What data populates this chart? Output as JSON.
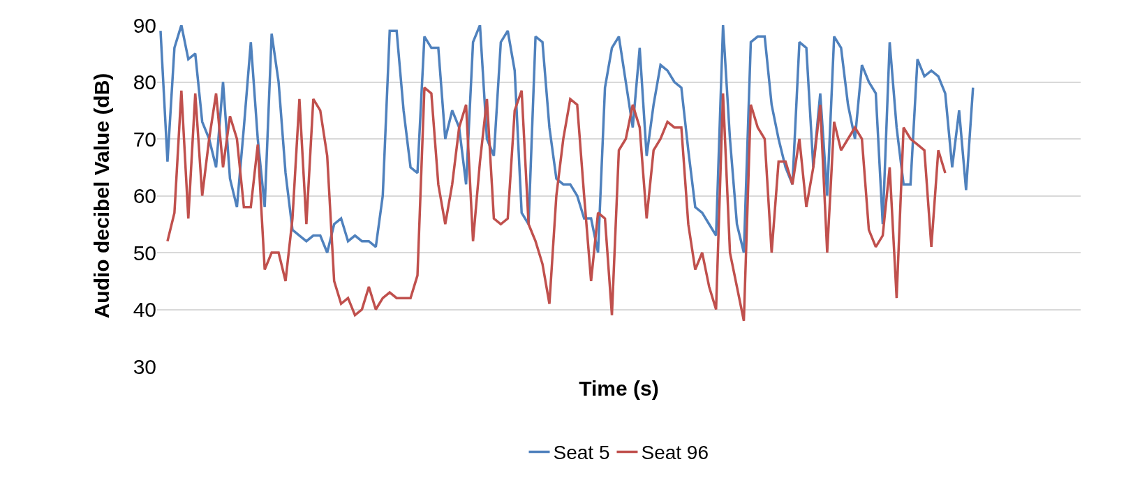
{
  "chart_data": {
    "type": "line",
    "xlabel": "Time (s)",
    "ylabel": "Audio decibel Value (dB)",
    "categories": [
      null,
      null,
      null,
      null,
      null,
      null,
      null,
      null,
      null,
      null,
      null,
      null,
      null,
      null,
      null,
      null,
      null,
      null,
      null,
      null,
      null,
      null,
      null,
      null,
      null,
      null,
      null,
      null,
      null,
      null,
      null,
      null,
      null,
      null,
      null,
      null,
      null,
      null,
      null,
      null,
      null,
      null,
      null,
      null,
      null,
      null,
      null,
      null,
      null,
      null,
      null,
      null,
      null,
      null,
      null,
      null,
      null,
      null,
      null,
      null,
      null,
      null,
      null,
      null,
      null,
      null,
      null,
      null,
      null,
      null,
      null,
      null,
      null,
      null,
      null,
      null,
      null,
      null,
      null,
      null,
      null,
      null,
      null,
      null,
      null,
      null,
      null,
      null,
      null,
      null,
      null,
      null,
      null,
      null,
      null,
      null,
      null,
      null,
      null,
      null,
      null,
      null,
      null,
      null,
      null,
      null,
      null,
      null,
      null,
      null,
      null,
      null,
      null,
      null,
      null,
      null,
      null,
      null,
      null,
      null,
      null,
      null,
      null,
      null,
      null,
      null,
      null,
      null,
      null,
      null,
      null,
      null,
      null
    ],
    "series": [
      {
        "name": "Seat 5",
        "color": "#4f81bd",
        "values": [
          89,
          66,
          86,
          90,
          84,
          85,
          73,
          70,
          65,
          80,
          63,
          58,
          72,
          87,
          70,
          58,
          88.5,
          80,
          64,
          54,
          53,
          52,
          53,
          53,
          50,
          55,
          56,
          52,
          53,
          52,
          52,
          51,
          60,
          89,
          89,
          75,
          65,
          64,
          88,
          86,
          86,
          70,
          75,
          72,
          62,
          87,
          90,
          70,
          67,
          87,
          89,
          82,
          57,
          55,
          88,
          87,
          72,
          63,
          62,
          62,
          60,
          56,
          56,
          50,
          79,
          86,
          88,
          80,
          72,
          86,
          67,
          76,
          83,
          82,
          80,
          79,
          68,
          58,
          57,
          55,
          53,
          90,
          70,
          55,
          50,
          87,
          88,
          88,
          76,
          70,
          65,
          62,
          87,
          86,
          65,
          78,
          60,
          88,
          86,
          76,
          70,
          83,
          80,
          78,
          55,
          87,
          72,
          62,
          62,
          84,
          81,
          82,
          81,
          78,
          65,
          75,
          61,
          79,
          null,
          null,
          null,
          null,
          null,
          null,
          null,
          null,
          null,
          null,
          null,
          null,
          null,
          null,
          null
        ]
      },
      {
        "name": "Seat 96",
        "color": "#c0504d",
        "values": [
          null,
          52,
          57,
          78.5,
          56,
          78,
          60,
          70,
          78,
          65,
          74,
          70,
          58,
          58,
          69,
          47,
          50,
          50,
          45,
          56,
          77,
          55,
          77,
          75,
          67,
          45,
          41,
          42,
          39,
          40,
          44,
          40,
          42,
          43,
          42,
          42,
          42,
          46,
          79,
          78,
          62,
          55,
          62,
          72,
          76,
          52,
          66,
          77,
          56,
          55,
          56,
          75,
          78.5,
          55,
          52,
          48,
          41,
          60,
          70,
          77,
          76,
          60,
          45,
          57,
          56,
          39,
          68,
          70,
          76,
          72,
          56,
          68,
          70,
          73,
          72,
          72,
          55,
          47,
          50,
          44,
          40,
          78,
          50,
          44,
          38,
          76,
          72,
          70,
          50,
          66,
          66,
          62,
          70,
          58,
          65,
          76,
          50,
          73,
          68,
          70,
          72,
          70,
          54,
          51,
          53,
          65,
          42,
          72,
          70,
          69,
          68,
          51,
          68,
          64,
          null,
          null,
          null,
          null,
          null,
          null,
          null,
          null,
          null,
          null,
          null,
          null,
          null,
          null,
          null,
          null,
          null,
          null,
          null
        ]
      }
    ],
    "ylim": [
      30,
      90
    ],
    "yticks": [
      30,
      40,
      50,
      60,
      70,
      80,
      90
    ],
    "grid": "y",
    "legend": "bottom",
    "marker": "none",
    "line_style": "solid"
  }
}
